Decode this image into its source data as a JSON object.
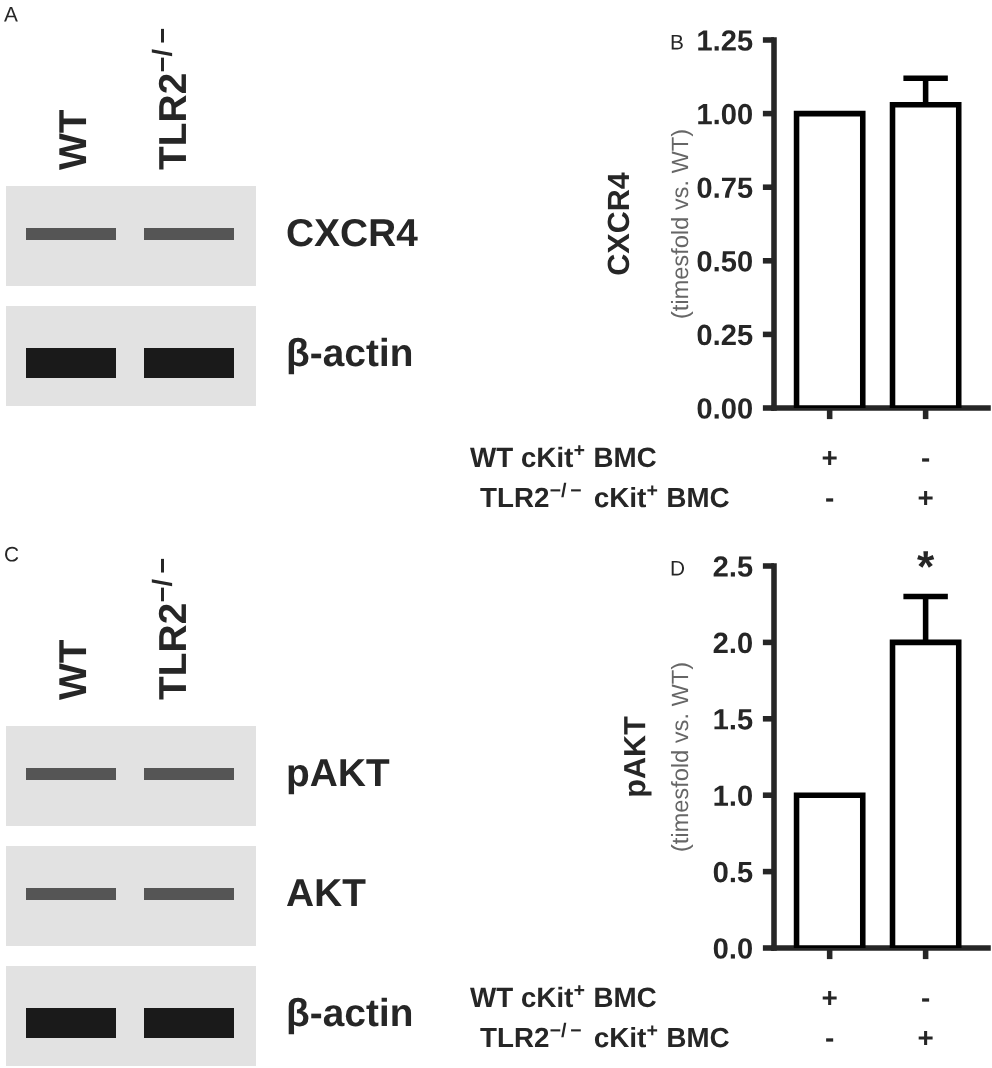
{
  "chart_data": [
    {
      "type": "other",
      "title": "A",
      "annotations": [
        "WT",
        "TLR2$^{−/−}$",
        "CXCR4",
        "β-actin"
      ]
    },
    {
      "type": "bar",
      "title": "B",
      "ylabel": "CXCR4",
      "categories": [
        null,
        null
      ],
      "values": [
        1.0,
        1.03
      ],
      "errors": [
        null,
        0.09
      ],
      "color": "#ffffff",
      "ylim": [
        0,
        1.25
      ],
      "yticks": [
        {
          "value": 0,
          "label": "0.00"
        },
        {
          "value": 0.25,
          "label": "0.25"
        },
        {
          "value": 0.5,
          "label": "0.50"
        },
        {
          "value": 0.75,
          "label": "0.75"
        },
        {
          "value": 1.0,
          "label": "1.00"
        },
        {
          "value": 1.25,
          "label": "1.25"
        }
      ],
      "annotations": [
        "(timesfold vs. WT)",
        "WT cKit$^{+}$ BMC",
        "+",
        "-",
        "TLR2$^{−/−}$ cKit$^{+}$ BMC",
        "-",
        "+"
      ]
    },
    {
      "type": "other",
      "title": "C",
      "annotations": [
        "WT",
        "TLR2$^{−/−}$",
        "pAKT",
        "AKT",
        "β-actin"
      ]
    },
    {
      "type": "bar",
      "title": "D",
      "ylabel": "pAKT",
      "categories": [
        null,
        null
      ],
      "values": [
        1.0,
        2.0
      ],
      "errors": [
        null,
        0.3
      ],
      "color": "#ffffff",
      "ylim": [
        0,
        2.5
      ],
      "yticks": [
        {
          "value": 0,
          "label": "0.0"
        },
        {
          "value": 0.5,
          "label": "0.5"
        },
        {
          "value": 1.0,
          "label": "1.0"
        },
        {
          "value": 1.5,
          "label": "1.5"
        },
        {
          "value": 2.0,
          "label": "2.0"
        },
        {
          "value": 2.5,
          "label": "2.5"
        }
      ],
      "annotations": [
        "(timesfold vs. WT)",
        "WT cKit$^{+}$ BMC",
        "+",
        "-",
        "TLR2$^{−/−}$ cKit$^{+}$ BMC",
        "-",
        "+",
        "*"
      ]
    }
  ]
}
